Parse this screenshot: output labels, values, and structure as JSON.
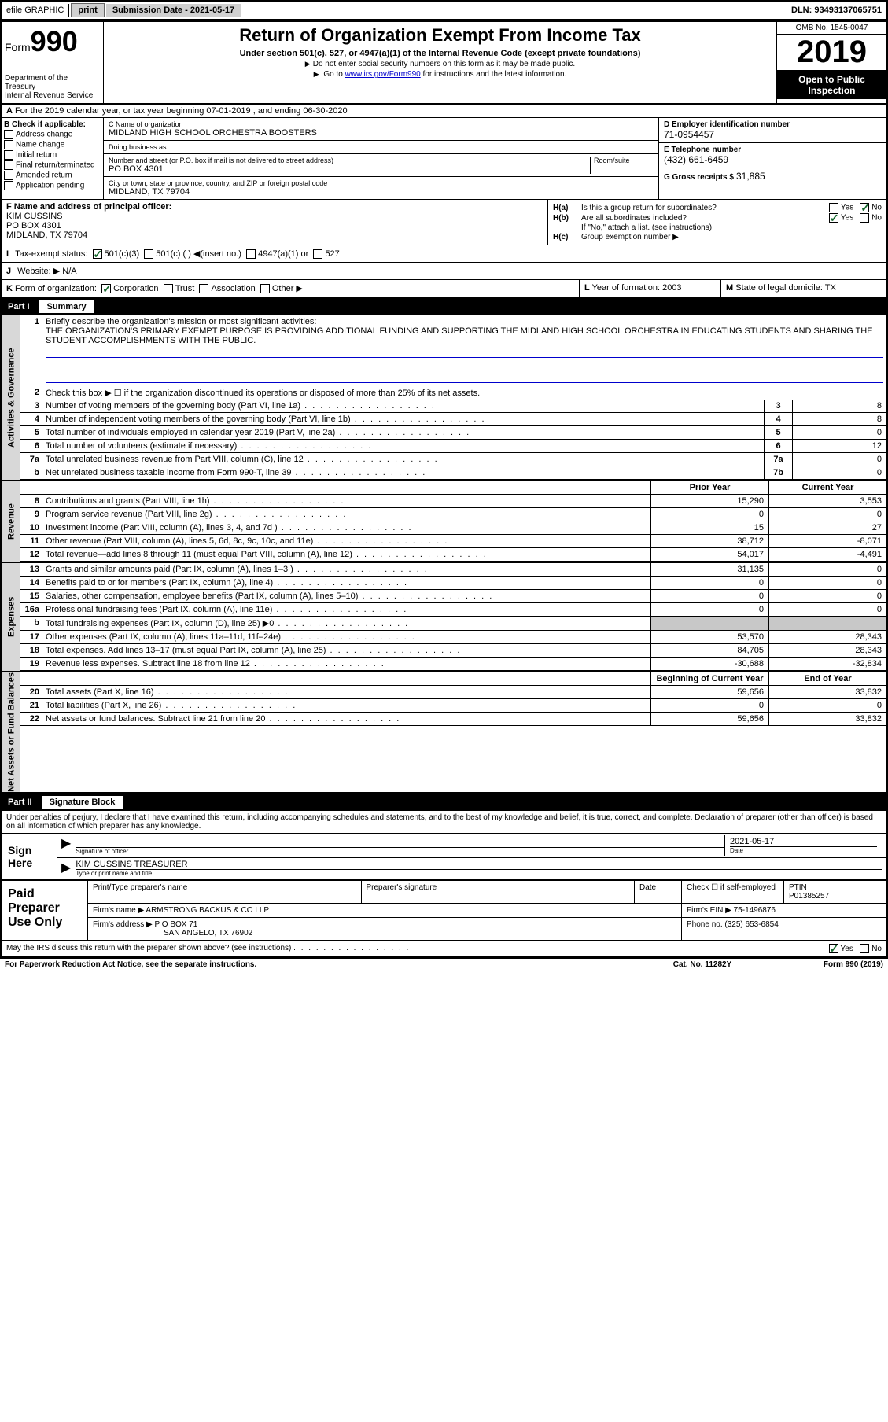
{
  "topbar": {
    "efile": "efile GRAPHIC",
    "print": "print",
    "submission_label": "Submission Date - 2021-05-17",
    "dln": "DLN: 93493137065751"
  },
  "header": {
    "form_prefix": "Form",
    "form_number": "990",
    "dept": "Department of the Treasury\nInternal Revenue Service",
    "title": "Return of Organization Exempt From Income Tax",
    "subtitle": "Under section 501(c), 527, or 4947(a)(1) of the Internal Revenue Code (except private foundations)",
    "note1": "Do not enter social security numbers on this form as it may be made public.",
    "note2_pre": "Go to ",
    "note2_link": "www.irs.gov/Form990",
    "note2_post": " for instructions and the latest information.",
    "omb": "OMB No. 1545-0047",
    "year": "2019",
    "open": "Open to Public Inspection"
  },
  "rowA": {
    "label": "A",
    "text": "For the 2019 calendar year, or tax year beginning 07-01-2019   , and ending 06-30-2020"
  },
  "colB": {
    "label": "B Check if applicable:",
    "items": [
      "Address change",
      "Name change",
      "Initial return",
      "Final return/terminated",
      "Amended return",
      "Application pending"
    ]
  },
  "colC": {
    "name_label": "C Name of organization",
    "name": "MIDLAND HIGH SCHOOL ORCHESTRA BOOSTERS",
    "dba_label": "Doing business as",
    "dba": "",
    "addr_label": "Number and street (or P.O. box if mail is not delivered to street address)",
    "addr": "PO BOX 4301",
    "room_label": "Room/suite",
    "city_label": "City or town, state or province, country, and ZIP or foreign postal code",
    "city": "MIDLAND, TX  79704"
  },
  "colD": {
    "ein_label": "D Employer identification number",
    "ein": "71-0954457",
    "tel_label": "E Telephone number",
    "tel": "(432) 661-6459",
    "gross_label": "G Gross receipts $",
    "gross": "31,885"
  },
  "colF": {
    "label": "F  Name and address of principal officer:",
    "name": "KIM CUSSINS",
    "addr1": "PO BOX 4301",
    "addr2": "MIDLAND, TX  79704"
  },
  "colH": {
    "ha_label": "H(a)",
    "ha_txt": "Is this a group return for subordinates?",
    "hb_label": "H(b)",
    "hb_txt": "Are all subordinates included?",
    "hb_note": "If \"No,\" attach a list. (see instructions)",
    "hc_label": "H(c)",
    "hc_txt": "Group exemption number ▶"
  },
  "rowI": {
    "label": "I",
    "text": "Tax-exempt status:",
    "opts": [
      "501(c)(3)",
      "501(c) (  ) ◀(insert no.)",
      "4947(a)(1) or",
      "527"
    ]
  },
  "rowJ": {
    "label": "J",
    "text": "Website: ▶",
    "val": "N/A"
  },
  "rowK": {
    "label": "K",
    "text": "Form of organization:",
    "opts": [
      "Corporation",
      "Trust",
      "Association",
      "Other ▶"
    ]
  },
  "rowL": {
    "label": "L",
    "text": "Year of formation: 2003"
  },
  "rowM": {
    "label": "M",
    "text": "State of legal domicile: TX"
  },
  "part1": {
    "num": "Part I",
    "title": "Summary"
  },
  "sections": {
    "ag": "Activities & Governance",
    "rev": "Revenue",
    "exp": "Expenses",
    "na": "Net Assets or Fund Balances"
  },
  "summary": {
    "line1_label": "Briefly describe the organization's mission or most significant activities:",
    "line1_text": "THE ORGANIZATION'S PRIMARY EXEMPT PURPOSE IS PROVIDING ADDITIONAL FUNDING AND SUPPORTING THE MIDLAND HIGH SCHOOL ORCHESTRA IN EDUCATING STUDENTS AND SHARING THE STUDENT ACCOMPLISHMENTS WITH THE PUBLIC.",
    "line2": "Check this box ▶ ☐ if the organization discontinued its operations or disposed of more than 25% of its net assets.",
    "rows_ag": [
      {
        "n": "3",
        "t": "Number of voting members of the governing body (Part VI, line 1a)",
        "box": "3",
        "v": "8"
      },
      {
        "n": "4",
        "t": "Number of independent voting members of the governing body (Part VI, line 1b)",
        "box": "4",
        "v": "8"
      },
      {
        "n": "5",
        "t": "Total number of individuals employed in calendar year 2019 (Part V, line 2a)",
        "box": "5",
        "v": "0"
      },
      {
        "n": "6",
        "t": "Total number of volunteers (estimate if necessary)",
        "box": "6",
        "v": "12"
      },
      {
        "n": "7a",
        "t": "Total unrelated business revenue from Part VIII, column (C), line 12",
        "box": "7a",
        "v": "0"
      },
      {
        "n": "b",
        "t": "Net unrelated business taxable income from Form 990-T, line 39",
        "box": "7b",
        "v": "0"
      }
    ],
    "py_hdr": "Prior Year",
    "cy_hdr": "Current Year",
    "rows_rev": [
      {
        "n": "8",
        "t": "Contributions and grants (Part VIII, line 1h)",
        "py": "15,290",
        "cy": "3,553"
      },
      {
        "n": "9",
        "t": "Program service revenue (Part VIII, line 2g)",
        "py": "0",
        "cy": "0"
      },
      {
        "n": "10",
        "t": "Investment income (Part VIII, column (A), lines 3, 4, and 7d )",
        "py": "15",
        "cy": "27"
      },
      {
        "n": "11",
        "t": "Other revenue (Part VIII, column (A), lines 5, 6d, 8c, 9c, 10c, and 11e)",
        "py": "38,712",
        "cy": "-8,071"
      },
      {
        "n": "12",
        "t": "Total revenue—add lines 8 through 11 (must equal Part VIII, column (A), line 12)",
        "py": "54,017",
        "cy": "-4,491"
      }
    ],
    "rows_exp": [
      {
        "n": "13",
        "t": "Grants and similar amounts paid (Part IX, column (A), lines 1–3 )",
        "py": "31,135",
        "cy": "0"
      },
      {
        "n": "14",
        "t": "Benefits paid to or for members (Part IX, column (A), line 4)",
        "py": "0",
        "cy": "0"
      },
      {
        "n": "15",
        "t": "Salaries, other compensation, employee benefits (Part IX, column (A), lines 5–10)",
        "py": "0",
        "cy": "0"
      },
      {
        "n": "16a",
        "t": "Professional fundraising fees (Part IX, column (A), line 11e)",
        "py": "0",
        "cy": "0"
      },
      {
        "n": "b",
        "t": "Total fundraising expenses (Part IX, column (D), line 25) ▶0",
        "py": "",
        "cy": "",
        "shaded": true
      },
      {
        "n": "17",
        "t": "Other expenses (Part IX, column (A), lines 11a–11d, 11f–24e)",
        "py": "53,570",
        "cy": "28,343"
      },
      {
        "n": "18",
        "t": "Total expenses. Add lines 13–17 (must equal Part IX, column (A), line 25)",
        "py": "84,705",
        "cy": "28,343"
      },
      {
        "n": "19",
        "t": "Revenue less expenses. Subtract line 18 from line 12",
        "py": "-30,688",
        "cy": "-32,834"
      }
    ],
    "boy_hdr": "Beginning of Current Year",
    "eoy_hdr": "End of Year",
    "rows_na": [
      {
        "n": "20",
        "t": "Total assets (Part X, line 16)",
        "py": "59,656",
        "cy": "33,832"
      },
      {
        "n": "21",
        "t": "Total liabilities (Part X, line 26)",
        "py": "0",
        "cy": "0"
      },
      {
        "n": "22",
        "t": "Net assets or fund balances. Subtract line 21 from line 20",
        "py": "59,656",
        "cy": "33,832"
      }
    ]
  },
  "part2": {
    "num": "Part II",
    "title": "Signature Block"
  },
  "sig": {
    "intro": "Under penalties of perjury, I declare that I have examined this return, including accompanying schedules and statements, and to the best of my knowledge and belief, it is true, correct, and complete. Declaration of preparer (other than officer) is based on all information of which preparer has any knowledge.",
    "here": "Sign Here",
    "officer_sig": "Signature of officer",
    "date_label": "Date",
    "date": "2021-05-17",
    "name_title": "KIM CUSSINS  TREASURER",
    "name_title_lbl": "Type or print name and title"
  },
  "prep": {
    "label": "Paid Preparer Use Only",
    "print_name_lbl": "Print/Type preparer's name",
    "prep_sig_lbl": "Preparer's signature",
    "date_lbl": "Date",
    "check_lbl": "Check ☐ if self-employed",
    "ptin_lbl": "PTIN",
    "ptin": "P01385257",
    "firm_name_lbl": "Firm's name    ▶",
    "firm_name": "ARMSTRONG BACKUS & CO LLP",
    "firm_ein_lbl": "Firm's EIN ▶",
    "firm_ein": "75-1496876",
    "firm_addr_lbl": "Firm's address ▶",
    "firm_addr": "P O BOX 71",
    "firm_city": "SAN ANGELO, TX  76902",
    "phone_lbl": "Phone no.",
    "phone": "(325) 653-6854"
  },
  "discuss": {
    "text": "May the IRS discuss this return with the preparer shown above? (see instructions)",
    "yes": "Yes",
    "no": "No"
  },
  "footer": {
    "left": "For Paperwork Reduction Act Notice, see the separate instructions.",
    "mid": "Cat. No. 11282Y",
    "right": "Form 990 (2019)"
  },
  "colors": {
    "link": "#0000cc",
    "check": "#14682c",
    "shade": "#c8c8c8",
    "black": "#000000",
    "white": "#ffffff"
  }
}
